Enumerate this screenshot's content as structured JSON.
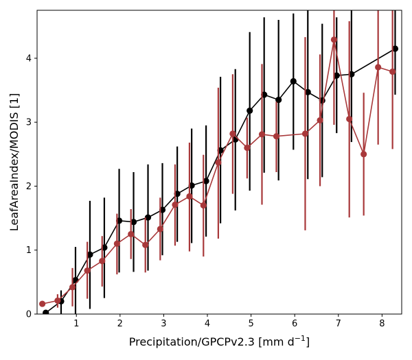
{
  "chart_data": {
    "type": "line",
    "title": "",
    "xlabel": "Precipitation/GPCPv2.3 [mm d",
    "xlabel_sup": "−1",
    "xlabel_end": "]",
    "ylabel": "LeafAreaIndex/MODIS [1]",
    "xlim": [
      0.1,
      8.45
    ],
    "ylim": [
      0,
      4.75
    ],
    "xticks": [
      1,
      2,
      3,
      4,
      5,
      6,
      7,
      8
    ],
    "yticks": [
      0,
      1,
      2,
      3,
      4
    ],
    "grid": false,
    "legend": "none",
    "series": [
      {
        "color": "#000000",
        "points": [
          {
            "x": 0.3,
            "y": 0.02,
            "lo": 0.0,
            "hi": 0.05
          },
          {
            "x": 0.65,
            "y": 0.2,
            "lo": 0.0,
            "hi": 0.37
          },
          {
            "x": 0.98,
            "y": 0.53,
            "lo": 0.0,
            "hi": 1.05
          },
          {
            "x": 1.31,
            "y": 0.93,
            "lo": 0.08,
            "hi": 1.77
          },
          {
            "x": 1.64,
            "y": 1.04,
            "lo": 0.25,
            "hi": 1.82
          },
          {
            "x": 1.98,
            "y": 1.46,
            "lo": 0.65,
            "hi": 2.27
          },
          {
            "x": 2.31,
            "y": 1.44,
            "lo": 0.66,
            "hi": 2.22
          },
          {
            "x": 2.64,
            "y": 1.51,
            "lo": 0.68,
            "hi": 2.34
          },
          {
            "x": 2.97,
            "y": 1.63,
            "lo": 0.92,
            "hi": 2.36
          },
          {
            "x": 3.31,
            "y": 1.88,
            "lo": 1.13,
            "hi": 2.62
          },
          {
            "x": 3.64,
            "y": 2.01,
            "lo": 1.11,
            "hi": 2.9
          },
          {
            "x": 3.97,
            "y": 2.08,
            "lo": 1.21,
            "hi": 2.95
          },
          {
            "x": 4.3,
            "y": 2.56,
            "lo": 1.42,
            "hi": 3.71
          },
          {
            "x": 4.64,
            "y": 2.73,
            "lo": 1.62,
            "hi": 3.83
          },
          {
            "x": 4.97,
            "y": 3.18,
            "lo": 1.93,
            "hi": 4.41
          },
          {
            "x": 5.3,
            "y": 3.43,
            "lo": 2.21,
            "hi": 4.64
          },
          {
            "x": 5.63,
            "y": 3.35,
            "lo": 2.09,
            "hi": 4.6
          },
          {
            "x": 5.97,
            "y": 3.64,
            "lo": 2.57,
            "hi": 4.7
          },
          {
            "x": 6.3,
            "y": 3.47,
            "lo": 2.11,
            "hi": 4.75
          },
          {
            "x": 6.63,
            "y": 3.34,
            "lo": 2.14,
            "hi": 4.54
          },
          {
            "x": 6.96,
            "y": 3.73,
            "lo": 2.83,
            "hi": 4.64
          },
          {
            "x": 7.3,
            "y": 3.75,
            "lo": 2.69,
            "hi": 4.75
          },
          {
            "x": 8.3,
            "y": 4.15,
            "lo": 3.43,
            "hi": 4.75
          }
        ]
      },
      {
        "color": "#a8383a",
        "points": [
          {
            "x": 0.22,
            "y": 0.16,
            "lo": 0.14,
            "hi": 0.18
          },
          {
            "x": 0.57,
            "y": 0.21,
            "lo": 0.1,
            "hi": 0.31
          },
          {
            "x": 0.91,
            "y": 0.42,
            "lo": 0.12,
            "hi": 0.72
          },
          {
            "x": 1.25,
            "y": 0.68,
            "lo": 0.24,
            "hi": 1.13
          },
          {
            "x": 1.59,
            "y": 0.83,
            "lo": 0.43,
            "hi": 1.22
          },
          {
            "x": 1.93,
            "y": 1.1,
            "lo": 0.62,
            "hi": 1.57
          },
          {
            "x": 2.25,
            "y": 1.25,
            "lo": 0.86,
            "hi": 1.64
          },
          {
            "x": 2.58,
            "y": 1.08,
            "lo": 0.65,
            "hi": 1.51
          },
          {
            "x": 2.92,
            "y": 1.33,
            "lo": 0.84,
            "hi": 1.82
          },
          {
            "x": 3.26,
            "y": 1.71,
            "lo": 1.07,
            "hi": 2.34
          },
          {
            "x": 3.59,
            "y": 1.84,
            "lo": 0.98,
            "hi": 2.68
          },
          {
            "x": 3.91,
            "y": 1.7,
            "lo": 0.9,
            "hi": 2.49
          },
          {
            "x": 4.25,
            "y": 2.37,
            "lo": 1.18,
            "hi": 3.54
          },
          {
            "x": 4.58,
            "y": 2.82,
            "lo": 1.88,
            "hi": 3.75
          },
          {
            "x": 4.91,
            "y": 2.6,
            "lo": 2.12,
            "hi": 3.07
          },
          {
            "x": 5.25,
            "y": 2.81,
            "lo": 1.71,
            "hi": 3.91
          },
          {
            "x": 5.58,
            "y": 2.78,
            "lo": 2.22,
            "hi": 3.32
          },
          {
            "x": 6.24,
            "y": 2.82,
            "lo": 1.31,
            "hi": 4.33
          },
          {
            "x": 6.58,
            "y": 3.03,
            "lo": 2.0,
            "hi": 4.06
          },
          {
            "x": 6.9,
            "y": 4.29,
            "lo": 2.96,
            "hi": 4.75
          },
          {
            "x": 7.25,
            "y": 3.05,
            "lo": 1.51,
            "hi": 4.58
          },
          {
            "x": 7.58,
            "y": 2.5,
            "lo": 1.54,
            "hi": 3.46
          },
          {
            "x": 7.91,
            "y": 3.86,
            "lo": 2.65,
            "hi": 4.75
          },
          {
            "x": 8.24,
            "y": 3.79,
            "lo": 2.58,
            "hi": 4.75
          }
        ]
      }
    ]
  }
}
